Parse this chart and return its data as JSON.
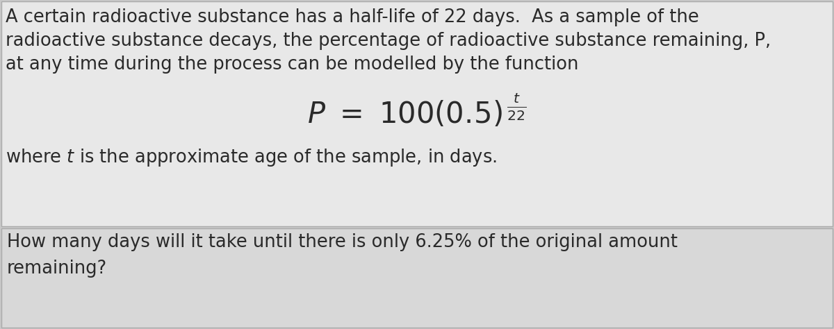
{
  "bg_outer": "#c8c8c8",
  "bg_top": "#e8e8e8",
  "bg_bottom": "#d8d8d8",
  "border_color": "#aaaaaa",
  "text_color": "#2a2a2a",
  "line1": "A certain radioactive substance has a half-life of 22 days.  As a sample of the",
  "line2": "radioactive substance decays, the percentage of radioactive substance remaining, P,",
  "line3": "at any time during the process can be modelled by the function",
  "line_where": "where $t$ is the approximate age of the sample, in days.",
  "question_line1": "How many days will it take until there is only 6.25% of the original amount",
  "question_line2": "remaining?",
  "font_size_body": 18.5,
  "font_size_formula": 30,
  "font_size_question": 18.5
}
